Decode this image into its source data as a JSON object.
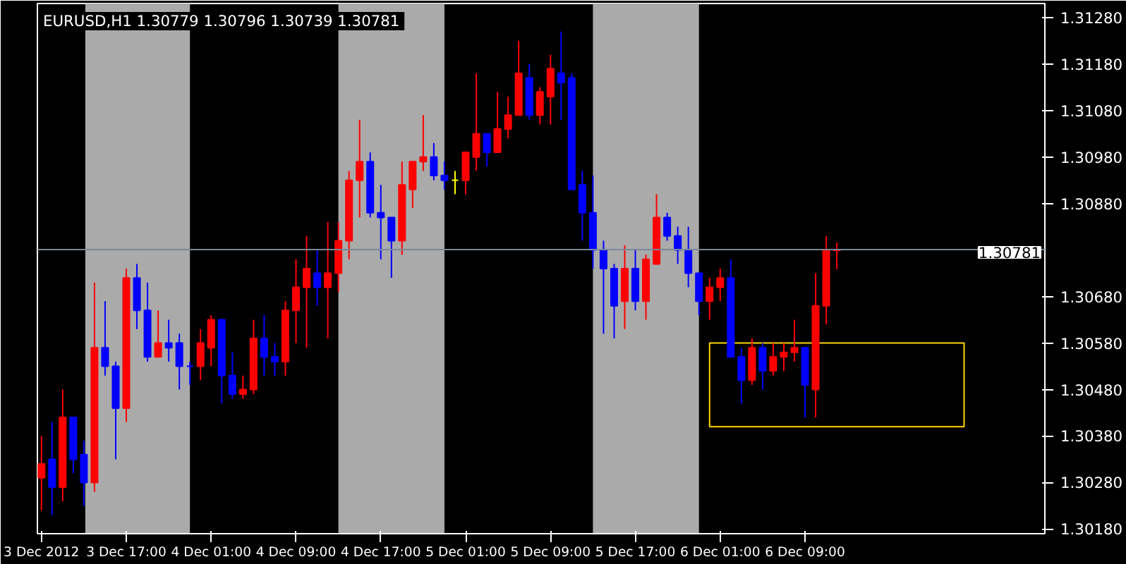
{
  "chart_data": {
    "type": "candlestick",
    "title": "EURUSD,H1  1.30779 1.30796 1.30739 1.30781",
    "x": [
      "2012-12-03T09:00",
      "2012-12-03T10:00",
      "2012-12-03T11:00",
      "2012-12-03T12:00",
      "2012-12-03T13:00",
      "2012-12-03T14:00",
      "2012-12-03T15:00",
      "2012-12-03T16:00",
      "2012-12-03T17:00",
      "2012-12-03T18:00",
      "2012-12-03T19:00",
      "2012-12-03T20:00",
      "2012-12-03T21:00",
      "2012-12-03T22:00",
      "2012-12-03T23:00",
      "2012-12-04T00:00",
      "2012-12-04T01:00",
      "2012-12-04T02:00",
      "2012-12-04T03:00",
      "2012-12-04T04:00",
      "2012-12-04T05:00",
      "2012-12-04T06:00",
      "2012-12-04T07:00",
      "2012-12-04T08:00",
      "2012-12-04T09:00",
      "2012-12-04T10:00",
      "2012-12-04T11:00",
      "2012-12-04T12:00",
      "2012-12-04T13:00",
      "2012-12-04T14:00",
      "2012-12-04T15:00",
      "2012-12-04T16:00",
      "2012-12-04T17:00",
      "2012-12-04T18:00",
      "2012-12-04T19:00",
      "2012-12-04T20:00",
      "2012-12-04T21:00",
      "2012-12-04T22:00",
      "2012-12-04T23:00",
      "2012-12-05T00:00",
      "2012-12-05T01:00",
      "2012-12-05T02:00",
      "2012-12-05T03:00",
      "2012-12-05T04:00",
      "2012-12-05T05:00",
      "2012-12-05T06:00",
      "2012-12-05T07:00",
      "2012-12-05T08:00",
      "2012-12-05T09:00",
      "2012-12-05T10:00",
      "2012-12-05T11:00",
      "2012-12-05T12:00",
      "2012-12-05T13:00",
      "2012-12-05T14:00",
      "2012-12-05T15:00",
      "2012-12-05T16:00",
      "2012-12-05T17:00",
      "2012-12-05T18:00",
      "2012-12-05T19:00",
      "2012-12-05T20:00",
      "2012-12-05T21:00",
      "2012-12-05T22:00",
      "2012-12-05T23:00",
      "2012-12-06T00:00",
      "2012-12-06T01:00",
      "2012-12-06T02:00",
      "2012-12-06T03:00",
      "2012-12-06T04:00",
      "2012-12-06T05:00",
      "2012-12-06T06:00",
      "2012-12-06T07:00",
      "2012-12-06T08:00",
      "2012-12-06T09:00",
      "2012-12-06T10:00",
      "2012-12-06T11:00",
      "2012-12-06T12:00"
    ],
    "ohlc": [
      [
        1.3029,
        1.3038,
        1.3022,
        1.3032
      ],
      [
        1.3033,
        1.3041,
        1.3021,
        1.3027
      ],
      [
        1.3027,
        1.3048,
        1.3024,
        1.3042
      ],
      [
        1.3042,
        1.3042,
        1.303,
        1.3033
      ],
      [
        1.3034,
        1.3037,
        1.3023,
        1.3028
      ],
      [
        1.3028,
        1.3071,
        1.3026,
        1.3057
      ],
      [
        1.3057,
        1.3067,
        1.3051,
        1.3053
      ],
      [
        1.3053,
        1.3054,
        1.3033,
        1.3044
      ],
      [
        1.3044,
        1.3074,
        1.3041,
        1.3072
      ],
      [
        1.3072,
        1.3075,
        1.3061,
        1.3065
      ],
      [
        1.3065,
        1.3071,
        1.3054,
        1.3055
      ],
      [
        1.3055,
        1.3065,
        1.3055,
        1.3058
      ],
      [
        1.3058,
        1.3063,
        1.3054,
        1.3057
      ],
      [
        1.3058,
        1.306,
        1.3048,
        1.3053
      ],
      [
        1.3053,
        1.3054,
        1.3049,
        1.3053
      ],
      [
        1.3053,
        1.3061,
        1.305,
        1.3058
      ],
      [
        1.3057,
        1.3064,
        1.3053,
        1.3063
      ],
      [
        1.3063,
        1.3063,
        1.3045,
        1.3051
      ],
      [
        1.3051,
        1.3056,
        1.3046,
        1.3047
      ],
      [
        1.3047,
        1.3051,
        1.3046,
        1.3048
      ],
      [
        1.3048,
        1.3063,
        1.3047,
        1.3059
      ],
      [
        1.3059,
        1.3064,
        1.3051,
        1.3055
      ],
      [
        1.3055,
        1.3058,
        1.3051,
        1.3054
      ],
      [
        1.3054,
        1.3067,
        1.3051,
        1.3065
      ],
      [
        1.3065,
        1.3076,
        1.3058,
        1.307
      ],
      [
        1.307,
        1.3081,
        1.3057,
        1.3074
      ],
      [
        1.3073,
        1.3078,
        1.3066,
        1.307
      ],
      [
        1.307,
        1.3084,
        1.3059,
        1.3073
      ],
      [
        1.3073,
        1.3084,
        1.3069,
        1.308
      ],
      [
        1.308,
        1.3095,
        1.3076,
        1.3093
      ],
      [
        1.3093,
        1.3106,
        1.3085,
        1.3097
      ],
      [
        1.3097,
        1.3099,
        1.3085,
        1.3086
      ],
      [
        1.3086,
        1.3092,
        1.3076,
        1.3085
      ],
      [
        1.3085,
        1.3085,
        1.3072,
        1.308
      ],
      [
        1.308,
        1.3097,
        1.3077,
        1.3092
      ],
      [
        1.3091,
        1.3097,
        1.3087,
        1.3097
      ],
      [
        1.3097,
        1.3107,
        1.3095,
        1.3098
      ],
      [
        1.3098,
        1.3101,
        1.3093,
        1.3094
      ],
      [
        1.3094,
        1.3097,
        1.3091,
        1.3093
      ],
      [
        1.3093,
        1.3095,
        1.309,
        1.3093
      ],
      [
        1.3093,
        1.3099,
        1.309,
        1.3099
      ],
      [
        1.3098,
        1.3116,
        1.3095,
        1.3103
      ],
      [
        1.3103,
        1.3103,
        1.3096,
        1.3099
      ],
      [
        1.3099,
        1.3112,
        1.3099,
        1.3104
      ],
      [
        1.3104,
        1.3111,
        1.3102,
        1.3107
      ],
      [
        1.3107,
        1.3123,
        1.3107,
        1.3116
      ],
      [
        1.3115,
        1.3118,
        1.3106,
        1.3107
      ],
      [
        1.3107,
        1.3113,
        1.3105,
        1.3112
      ],
      [
        1.3111,
        1.312,
        1.3105,
        1.3117
      ],
      [
        1.3116,
        1.3125,
        1.3106,
        1.3114
      ],
      [
        1.3115,
        1.3116,
        1.3091,
        1.3091
      ],
      [
        1.3092,
        1.3095,
        1.308,
        1.3086
      ],
      [
        1.3086,
        1.3094,
        1.3074,
        1.3078
      ],
      [
        1.3078,
        1.308,
        1.306,
        1.3074
      ],
      [
        1.3074,
        1.3075,
        1.3059,
        1.3066
      ],
      [
        1.3067,
        1.3079,
        1.3061,
        1.3074
      ],
      [
        1.3074,
        1.3078,
        1.3065,
        1.3067
      ],
      [
        1.3067,
        1.3077,
        1.3063,
        1.3076
      ],
      [
        1.3075,
        1.309,
        1.3075,
        1.3085
      ],
      [
        1.3085,
        1.3086,
        1.308,
        1.3081
      ],
      [
        1.3081,
        1.3083,
        1.3075,
        1.3078
      ],
      [
        1.3078,
        1.3083,
        1.307,
        1.3073
      ],
      [
        1.3073,
        1.3073,
        1.3064,
        1.3067
      ],
      [
        1.3067,
        1.3072,
        1.3063,
        1.307
      ],
      [
        1.307,
        1.3074,
        1.3067,
        1.3072
      ],
      [
        1.3072,
        1.3076,
        1.3055,
        1.3055
      ],
      [
        1.3055,
        1.3057,
        1.3045,
        1.305
      ],
      [
        1.305,
        1.3059,
        1.3049,
        1.3057
      ],
      [
        1.3057,
        1.3058,
        1.3048,
        1.3052
      ],
      [
        1.3052,
        1.3058,
        1.3051,
        1.3055
      ],
      [
        1.3055,
        1.3058,
        1.3052,
        1.3056
      ],
      [
        1.3056,
        1.3063,
        1.3054,
        1.3057
      ],
      [
        1.3057,
        1.3057,
        1.3042,
        1.3049
      ],
      [
        1.3048,
        1.3073,
        1.3042,
        1.3066
      ],
      [
        1.3066,
        1.3081,
        1.3062,
        1.3078
      ],
      [
        1.30779,
        1.30796,
        1.30739,
        1.30781
      ]
    ],
    "colors": [
      "#ff0000",
      "#0000ff",
      "#ff0000",
      "#0000ff",
      "#0000ff",
      "#ff0000",
      "#0000ff",
      "#0000ff",
      "#ff0000",
      "#0000ff",
      "#0000ff",
      "#ff0000",
      "#0000ff",
      "#0000ff",
      "#0000ff",
      "#ff0000",
      "#ff0000",
      "#0000ff",
      "#0000ff",
      "#ff0000",
      "#ff0000",
      "#0000ff",
      "#0000ff",
      "#ff0000",
      "#ff0000",
      "#ff0000",
      "#0000ff",
      "#ff0000",
      "#ff0000",
      "#ff0000",
      "#ff0000",
      "#0000ff",
      "#0000ff",
      "#0000ff",
      "#ff0000",
      "#ff0000",
      "#ff0000",
      "#0000ff",
      "#0000ff",
      "#ffff00",
      "#ff0000",
      "#ff0000",
      "#0000ff",
      "#ff0000",
      "#ff0000",
      "#ff0000",
      "#0000ff",
      "#ff0000",
      "#ff0000",
      "#0000ff",
      "#0000ff",
      "#0000ff",
      "#0000ff",
      "#0000ff",
      "#0000ff",
      "#ff0000",
      "#0000ff",
      "#ff0000",
      "#ff0000",
      "#0000ff",
      "#0000ff",
      "#0000ff",
      "#0000ff",
      "#ff0000",
      "#ff0000",
      "#0000ff",
      "#0000ff",
      "#ff0000",
      "#0000ff",
      "#ff0000",
      "#ff0000",
      "#ff0000",
      "#0000ff",
      "#ff0000",
      "#ff0000",
      "#ff0000"
    ],
    "xlim": [
      "2012-12-03T08:37",
      "2012-12-07T07:37"
    ],
    "xticks": [
      {
        "value": "2012-12-03T09:00",
        "label": "3 Dec 2012"
      },
      {
        "value": "2012-12-03T17:00",
        "label": "3 Dec 17:00"
      },
      {
        "value": "2012-12-04T01:00",
        "label": "4 Dec 01:00"
      },
      {
        "value": "2012-12-04T09:00",
        "label": "4 Dec 09:00"
      },
      {
        "value": "2012-12-04T17:00",
        "label": "4 Dec 17:00"
      },
      {
        "value": "2012-12-05T01:00",
        "label": "5 Dec 01:00"
      },
      {
        "value": "2012-12-05T09:00",
        "label": "5 Dec 09:00"
      },
      {
        "value": "2012-12-05T17:00",
        "label": "5 Dec 17:00"
      },
      {
        "value": "2012-12-06T01:00",
        "label": "6 Dec 01:00"
      },
      {
        "value": "2012-12-06T09:00",
        "label": "6 Dec 09:00"
      }
    ],
    "ylim": [
      1.3017,
      1.3131
    ],
    "yticks": [
      {
        "value": 1.3018,
        "label": "1.30180"
      },
      {
        "value": 1.3028,
        "label": "1.30280"
      },
      {
        "value": 1.3038,
        "label": "1.30380"
      },
      {
        "value": 1.3048,
        "label": "1.30480"
      },
      {
        "value": 1.3058,
        "label": "1.30580"
      },
      {
        "value": 1.3068,
        "label": "1.30680"
      },
      {
        "value": 1.3088,
        "label": "1.30880"
      },
      {
        "value": 1.3098,
        "label": "1.30980"
      },
      {
        "value": 1.3108,
        "label": "1.31080"
      },
      {
        "value": 1.3118,
        "label": "1.31180"
      },
      {
        "value": 1.3128,
        "label": "1.31280"
      }
    ],
    "ref_lines": [
      {
        "axis": "y",
        "value": 1.30781,
        "label": "1.30781",
        "color": "#778899"
      }
    ],
    "bands": [
      {
        "axis": "x",
        "from": "2012-12-03T13:08",
        "to": "2012-12-03T23:00",
        "color": "#aaaaaa"
      },
      {
        "axis": "x",
        "from": "2012-12-04T13:00",
        "to": "2012-12-04T23:00",
        "color": "#aaaaaa"
      },
      {
        "axis": "x",
        "from": "2012-12-05T13:00",
        "to": "2012-12-05T23:00",
        "color": "#aaaaaa"
      }
    ],
    "grid": false
  }
}
